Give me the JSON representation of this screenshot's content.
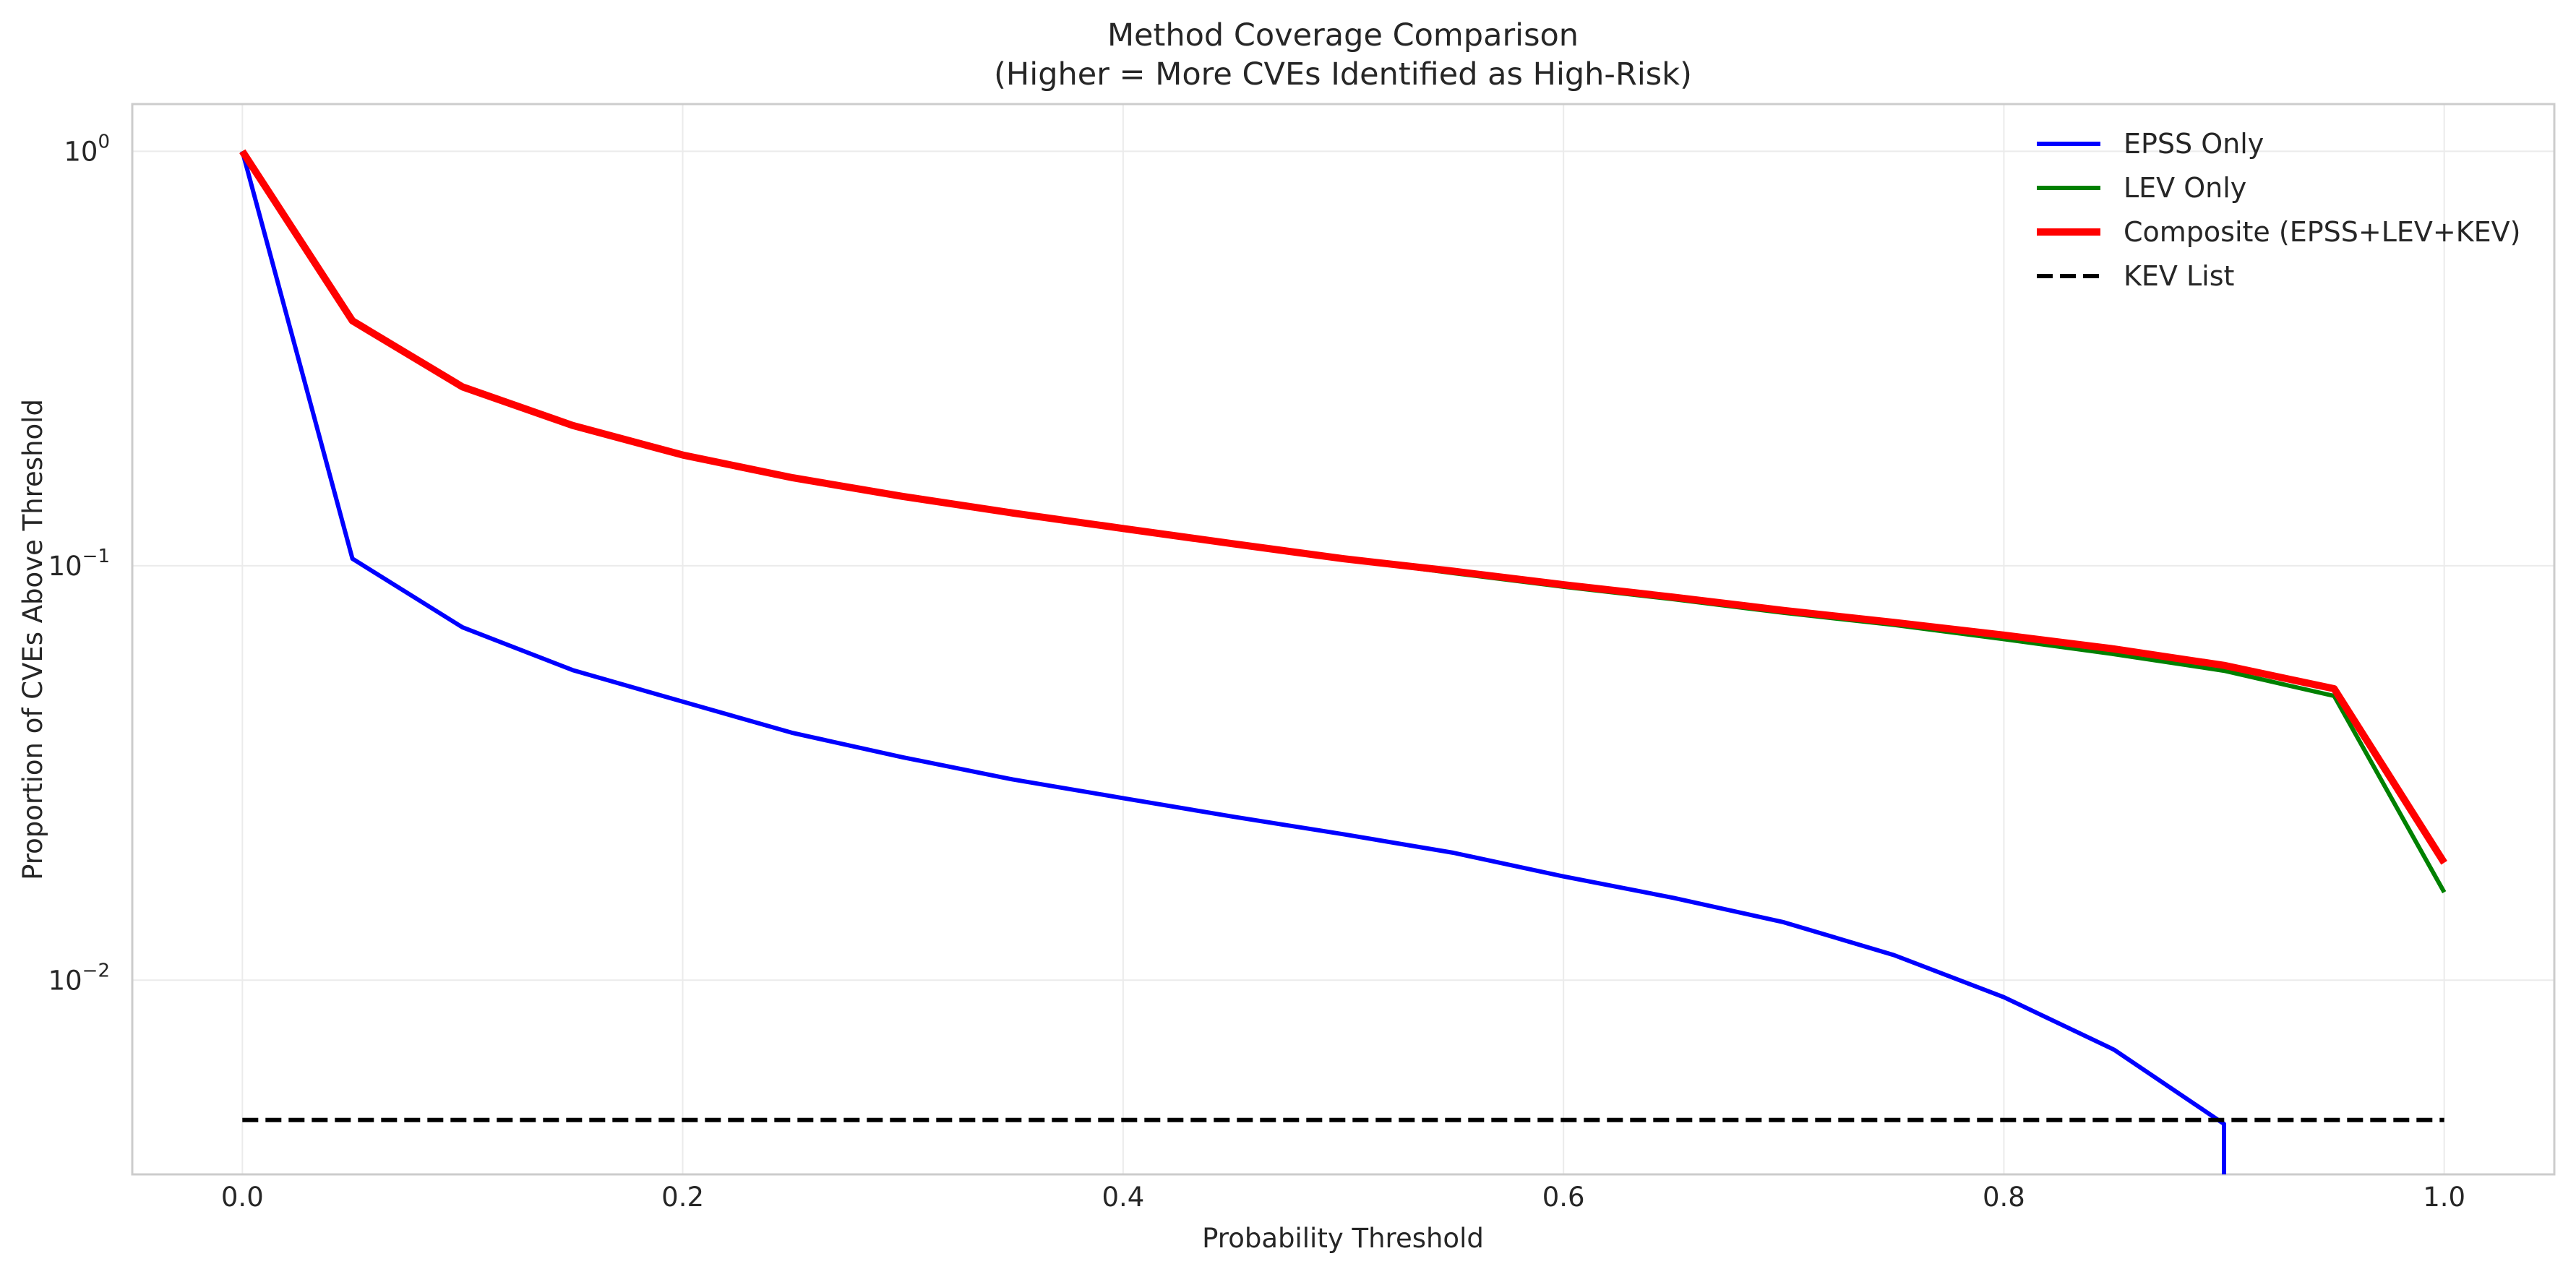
{
  "chart_data": {
    "type": "line",
    "title": "Method Coverage Comparison",
    "subtitle": "(Higher = More CVEs Identified as High-Risk)",
    "xlabel": "Probability Threshold",
    "ylabel": "Proportion of CVEs Above Threshold",
    "xlim": [
      -0.05,
      1.05
    ],
    "ylim": [
      0.0034,
      1.3
    ],
    "y_scale": "log",
    "grid": true,
    "legend_position": "top-right",
    "x_ticks": [
      0.0,
      0.2,
      0.4,
      0.6,
      0.8,
      1.0
    ],
    "x_tick_labels": [
      "0.0",
      "0.2",
      "0.4",
      "0.6",
      "0.8",
      "1.0"
    ],
    "y_ticks": [
      1,
      0.1,
      0.01
    ],
    "y_tick_labels": [
      {
        "base": "10",
        "exp": "0"
      },
      {
        "base": "10",
        "exp": "−1"
      },
      {
        "base": "10",
        "exp": "−2"
      }
    ],
    "series": [
      {
        "name": "EPSS Only",
        "color": "#0000ff",
        "style": "solid",
        "x": [
          0.0,
          0.05,
          0.1,
          0.15,
          0.2,
          0.25,
          0.3,
          0.35,
          0.4,
          0.45,
          0.5,
          0.55,
          0.6,
          0.65,
          0.7,
          0.75,
          0.8,
          0.85,
          0.9,
          0.9
        ],
        "y": [
          1.0,
          0.104,
          0.071,
          0.056,
          0.047,
          0.0395,
          0.0345,
          0.0305,
          0.0275,
          0.0248,
          0.0225,
          0.0203,
          0.0178,
          0.0158,
          0.0138,
          0.0115,
          0.0091,
          0.0068,
          0.0045,
          0.0034
        ]
      },
      {
        "name": "LEV Only",
        "color": "#008000",
        "style": "solid",
        "x": [
          0.0,
          0.05,
          0.1,
          0.15,
          0.2,
          0.25,
          0.3,
          0.35,
          0.4,
          0.45,
          0.5,
          0.55,
          0.6,
          0.65,
          0.7,
          0.75,
          0.8,
          0.85,
          0.9,
          0.95,
          1.0
        ],
        "y": [
          1.0,
          0.39,
          0.27,
          0.218,
          0.185,
          0.163,
          0.147,
          0.134,
          0.123,
          0.113,
          0.104,
          0.096,
          0.089,
          0.083,
          0.077,
          0.072,
          0.0665,
          0.0612,
          0.0558,
          0.0485,
          0.0163
        ]
      },
      {
        "name": "Composite (EPSS+LEV+KEV)",
        "color": "#ff0000",
        "style": "solid",
        "x": [
          0.0,
          0.05,
          0.1,
          0.15,
          0.2,
          0.25,
          0.3,
          0.35,
          0.4,
          0.45,
          0.5,
          0.55,
          0.6,
          0.65,
          0.7,
          0.75,
          0.8,
          0.85,
          0.9,
          0.95,
          1.0
        ],
        "y": [
          1.0,
          0.39,
          0.27,
          0.218,
          0.185,
          0.163,
          0.147,
          0.134,
          0.123,
          0.113,
          0.104,
          0.097,
          0.09,
          0.084,
          0.078,
          0.073,
          0.068,
          0.063,
          0.0575,
          0.0505,
          0.0192
        ]
      },
      {
        "name": "KEV List",
        "color": "#000000",
        "style": "dashed",
        "x": [
          0.0,
          1.0
        ],
        "y": [
          0.0046,
          0.0046
        ]
      }
    ]
  }
}
